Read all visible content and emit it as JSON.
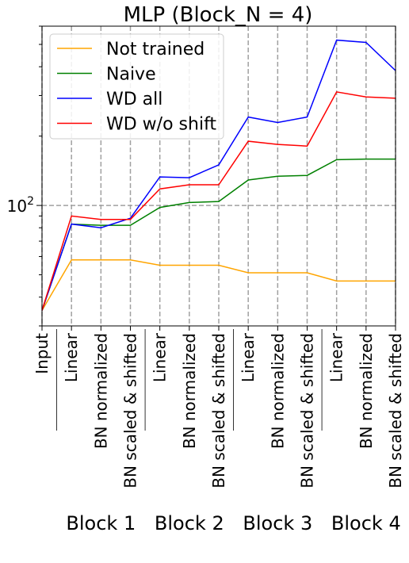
{
  "chart_data": {
    "type": "line",
    "title": "MLP (Block_N = 4)",
    "xlabel": "",
    "ylabel": "",
    "y_scale": "log",
    "y_tick_label": "10^2",
    "ylim": [
      30,
      600
    ],
    "grid": true,
    "legend_position": "top-left",
    "categories": [
      "Input",
      "Linear",
      "BN normalized",
      "BN scaled & shifted",
      "Linear",
      "BN normalized",
      "BN scaled & shifted",
      "Linear",
      "BN normalized",
      "BN scaled & shifted",
      "Linear",
      "BN normalized",
      "BN scaled & shifted"
    ],
    "groups": [
      {
        "label": "Block 1"
      },
      {
        "label": "Block 2"
      },
      {
        "label": "Block 3"
      },
      {
        "label": "Block 4"
      }
    ],
    "series": [
      {
        "name": "Not trained",
        "color": "#FFA500",
        "values": [
          35,
          58,
          58,
          58,
          55,
          55,
          55,
          51,
          51,
          51,
          47,
          47,
          47
        ]
      },
      {
        "name": "Naive",
        "color": "#008000",
        "values": [
          35,
          83,
          82,
          82,
          98,
          103,
          104,
          129,
          134,
          135,
          158,
          159,
          159
        ]
      },
      {
        "name": "WD all",
        "color": "#0000FF",
        "values": [
          35,
          83,
          80,
          88,
          133,
          132,
          150,
          242,
          229,
          242,
          522,
          510,
          385
        ]
      },
      {
        "name": "WD w/o shift",
        "color": "#FF0000",
        "values": [
          35,
          90,
          87,
          87,
          118,
          123,
          123,
          190,
          184,
          181,
          311,
          296,
          292
        ]
      }
    ]
  }
}
